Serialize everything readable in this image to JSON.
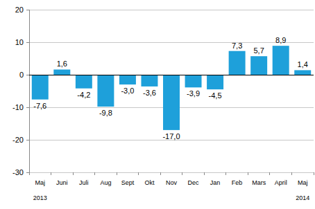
{
  "chart_data": {
    "type": "bar",
    "categories": [
      "Maj",
      "Juni",
      "Juli",
      "Aug",
      "Sept",
      "Okt",
      "Nov",
      "Dec",
      "Jan",
      "Feb",
      "Mars",
      "April",
      "Maj"
    ],
    "values": [
      -7.6,
      1.6,
      -4.2,
      -9.8,
      -3.0,
      -3.6,
      -17.0,
      -3.9,
      -4.5,
      7.3,
      5.7,
      8.9,
      1.4
    ],
    "value_labels": [
      "-7,6",
      "1,6",
      "-4,2",
      "-9,8",
      "-3,0",
      "-3,6",
      "-17,0",
      "-3,9",
      "-4,5",
      "7,3",
      "5,7",
      "8,9",
      "1,4"
    ],
    "color": "#1ea0da",
    "ylim": [
      -30,
      20
    ],
    "yticks": [
      -30,
      -20,
      -10,
      0,
      10,
      20
    ],
    "grid": true,
    "data_labels": true,
    "annotations": [
      "2013",
      "2014"
    ]
  }
}
